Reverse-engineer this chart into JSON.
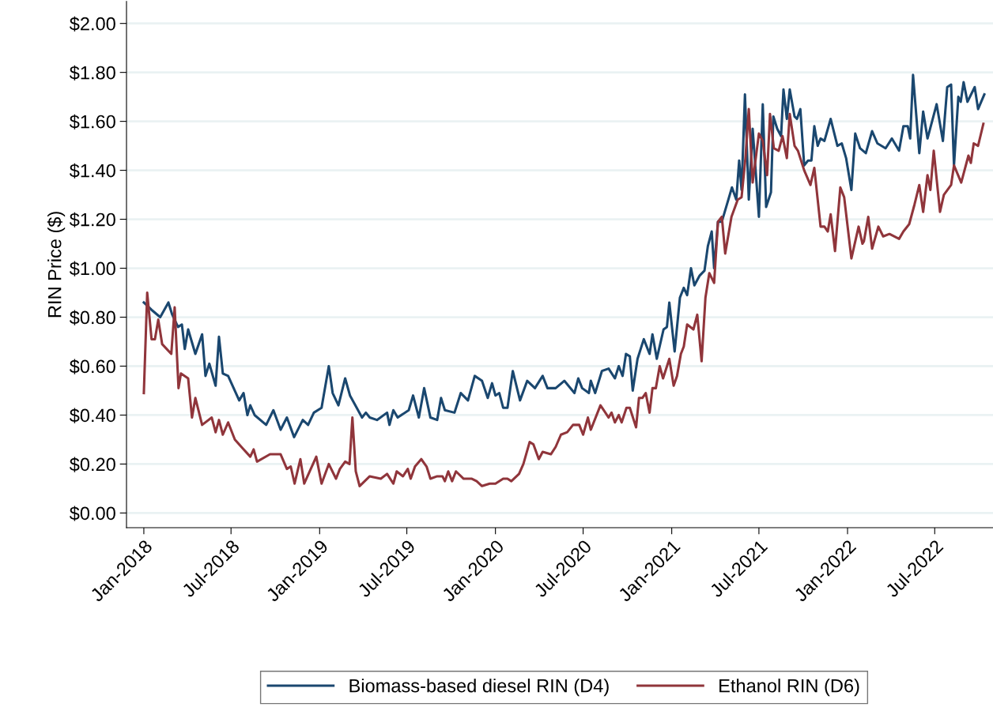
{
  "chart_data": {
    "type": "line",
    "ylabel": "RIN Price ($)",
    "xlim": [
      "2017-11-26",
      "2022-10-30"
    ],
    "ylim": [
      -0.06,
      2.09
    ],
    "xticks": [
      {
        "value": "2018-01-01",
        "label": "Jan-2018"
      },
      {
        "value": "2018-07-01",
        "label": "Jul-2018"
      },
      {
        "value": "2019-01-01",
        "label": "Jan-2019"
      },
      {
        "value": "2019-07-01",
        "label": "Jul-2019"
      },
      {
        "value": "2020-01-01",
        "label": "Jan-2020"
      },
      {
        "value": "2020-07-01",
        "label": "Jul-2020"
      },
      {
        "value": "2021-01-01",
        "label": "Jan-2021"
      },
      {
        "value": "2021-07-01",
        "label": "Jul-2021"
      },
      {
        "value": "2022-01-01",
        "label": "Jan-2022"
      },
      {
        "value": "2022-07-01",
        "label": "Jul-2022"
      }
    ],
    "yticks": [
      {
        "value": 0,
        "label": "$0.00"
      },
      {
        "value": 0.2,
        "label": "$0.20"
      },
      {
        "value": 0.4,
        "label": "$0.40"
      },
      {
        "value": 0.6,
        "label": "$0.60"
      },
      {
        "value": 0.8,
        "label": "$0.80"
      },
      {
        "value": 1.0,
        "label": "$1.00"
      },
      {
        "value": 1.2,
        "label": "$1.20"
      },
      {
        "value": 1.4,
        "label": "$1.40"
      },
      {
        "value": 1.6,
        "label": "$1.60"
      },
      {
        "value": 1.8,
        "label": "$1.80"
      },
      {
        "value": 2.0,
        "label": "$2.00"
      }
    ],
    "grid": "y",
    "legend": "bottom",
    "marker": "none",
    "line_style": "solid",
    "series": [
      {
        "name": "Biomass-based diesel RIN (D4)",
        "color": "#1a476f",
        "x": [
          "2018-01-01",
          "2018-01-17",
          "2018-02-04",
          "2018-02-21",
          "2018-03-01",
          "2018-03-13",
          "2018-03-21",
          "2018-03-27",
          "2018-04-03",
          "2018-04-18",
          "2018-05-02",
          "2018-05-09",
          "2018-05-17",
          "2018-05-30",
          "2018-06-06",
          "2018-06-14",
          "2018-06-25",
          "2018-07-18",
          "2018-07-27",
          "2018-08-04",
          "2018-08-10",
          "2018-08-19",
          "2018-09-12",
          "2018-09-27",
          "2018-10-12",
          "2018-10-25",
          "2018-11-09",
          "2018-11-27",
          "2018-12-08",
          "2018-12-20",
          "2019-01-05",
          "2019-01-20",
          "2019-01-28",
          "2019-02-09",
          "2019-02-23",
          "2019-03-05",
          "2019-03-30",
          "2019-04-07",
          "2019-04-15",
          "2019-04-30",
          "2019-05-21",
          "2019-05-26",
          "2019-06-03",
          "2019-06-12",
          "2019-07-05",
          "2019-07-14",
          "2019-07-26",
          "2019-08-06",
          "2019-08-19",
          "2019-09-02",
          "2019-09-10",
          "2019-09-18",
          "2019-10-08",
          "2019-10-21",
          "2019-11-05",
          "2019-11-19",
          "2019-12-04",
          "2019-12-16",
          "2019-12-25",
          "2020-01-01",
          "2020-01-09",
          "2020-01-17",
          "2020-01-26",
          "2020-02-06",
          "2020-02-21",
          "2020-03-07",
          "2020-03-23",
          "2020-04-08",
          "2020-04-18",
          "2020-05-05",
          "2020-05-23",
          "2020-06-13",
          "2020-06-21",
          "2020-06-29",
          "2020-07-13",
          "2020-07-17",
          "2020-07-26",
          "2020-08-09",
          "2020-08-23",
          "2020-09-05",
          "2020-09-13",
          "2020-09-21",
          "2020-09-28",
          "2020-10-06",
          "2020-10-12",
          "2020-10-22",
          "2020-11-04",
          "2020-11-16",
          "2020-11-22",
          "2020-12-01",
          "2020-12-15",
          "2020-12-22",
          "2020-12-27",
          "2021-01-07",
          "2021-01-18",
          "2021-01-26",
          "2021-02-02",
          "2021-02-10",
          "2021-02-17",
          "2021-02-28",
          "2021-03-10",
          "2021-03-17",
          "2021-03-25",
          "2021-03-30",
          "2021-04-07",
          "2021-04-15",
          "2021-04-27",
          "2021-05-06",
          "2021-05-15",
          "2021-05-21",
          "2021-05-26",
          "2021-06-02",
          "2021-06-10",
          "2021-06-18",
          "2021-07-01",
          "2021-07-09",
          "2021-07-16",
          "2021-07-26",
          "2021-07-31",
          "2021-08-08",
          "2021-08-16",
          "2021-08-21",
          "2021-08-28",
          "2021-09-03",
          "2021-09-13",
          "2021-09-18",
          "2021-09-25",
          "2021-10-03",
          "2021-10-11",
          "2021-10-18",
          "2021-10-24",
          "2021-10-31",
          "2021-11-06",
          "2021-11-14",
          "2021-11-27",
          "2021-12-11",
          "2021-12-20",
          "2021-12-29",
          "2022-01-09",
          "2022-01-17",
          "2022-01-27",
          "2022-02-08",
          "2022-02-21",
          "2022-03-04",
          "2022-03-21",
          "2022-04-03",
          "2022-04-18",
          "2022-04-27",
          "2022-05-06",
          "2022-05-11",
          "2022-05-17",
          "2022-05-30",
          "2022-06-07",
          "2022-06-16",
          "2022-07-05",
          "2022-07-18",
          "2022-07-27",
          "2022-08-04",
          "2022-08-10",
          "2022-08-19",
          "2022-08-24",
          "2022-08-30",
          "2022-09-07",
          "2022-09-22",
          "2022-09-29",
          "2022-10-12"
        ],
        "values": [
          0.86,
          0.83,
          0.8,
          0.86,
          0.81,
          0.76,
          0.77,
          0.67,
          0.75,
          0.65,
          0.73,
          0.56,
          0.61,
          0.52,
          0.72,
          0.57,
          0.56,
          0.46,
          0.49,
          0.4,
          0.44,
          0.4,
          0.36,
          0.42,
          0.34,
          0.39,
          0.31,
          0.38,
          0.36,
          0.41,
          0.43,
          0.6,
          0.49,
          0.44,
          0.55,
          0.48,
          0.39,
          0.41,
          0.39,
          0.38,
          0.41,
          0.36,
          0.42,
          0.39,
          0.42,
          0.48,
          0.39,
          0.51,
          0.39,
          0.38,
          0.47,
          0.42,
          0.41,
          0.49,
          0.46,
          0.56,
          0.54,
          0.47,
          0.53,
          0.48,
          0.49,
          0.43,
          0.43,
          0.58,
          0.46,
          0.54,
          0.51,
          0.56,
          0.51,
          0.51,
          0.54,
          0.49,
          0.55,
          0.51,
          0.49,
          0.54,
          0.49,
          0.58,
          0.59,
          0.55,
          0.6,
          0.56,
          0.65,
          0.64,
          0.5,
          0.63,
          0.71,
          0.65,
          0.73,
          0.63,
          0.75,
          0.76,
          0.86,
          0.66,
          0.88,
          0.92,
          0.89,
          1.0,
          0.93,
          0.97,
          0.99,
          1.09,
          1.15,
          1.0,
          1.19,
          1.19,
          1.27,
          1.33,
          1.28,
          1.44,
          1.32,
          1.71,
          1.28,
          1.57,
          1.21,
          1.67,
          1.25,
          1.31,
          1.62,
          1.57,
          1.54,
          1.73,
          1.61,
          1.73,
          1.62,
          1.61,
          1.65,
          1.42,
          1.44,
          1.44,
          1.58,
          1.5,
          1.53,
          1.52,
          1.61,
          1.5,
          1.51,
          1.45,
          1.32,
          1.55,
          1.49,
          1.47,
          1.56,
          1.51,
          1.49,
          1.53,
          1.48,
          1.58,
          1.58,
          1.53,
          1.79,
          1.47,
          1.64,
          1.53,
          1.67,
          1.52,
          1.74,
          1.75,
          1.42,
          1.7,
          1.68,
          1.76,
          1.68,
          1.74,
          1.65,
          1.71
        ]
      },
      {
        "name": "Ethanol RIN (D6)",
        "color": "#90353b",
        "x": [
          "2018-01-01",
          "2018-01-08",
          "2018-01-17",
          "2018-01-24",
          "2018-01-31",
          "2018-02-08",
          "2018-02-27",
          "2018-03-06",
          "2018-03-14",
          "2018-03-19",
          "2018-04-03",
          "2018-04-11",
          "2018-04-18",
          "2018-05-02",
          "2018-05-22",
          "2018-05-30",
          "2018-06-06",
          "2018-06-14",
          "2018-06-25",
          "2018-07-09",
          "2018-07-27",
          "2018-08-10",
          "2018-08-17",
          "2018-08-24",
          "2018-09-20",
          "2018-10-12",
          "2018-10-25",
          "2018-11-02",
          "2018-11-10",
          "2018-11-22",
          "2018-11-30",
          "2018-12-25",
          "2019-01-05",
          "2019-01-20",
          "2019-02-04",
          "2019-02-12",
          "2019-02-23",
          "2019-03-04",
          "2019-03-10",
          "2019-03-17",
          "2019-03-25",
          "2019-04-15",
          "2019-05-08",
          "2019-05-21",
          "2019-06-03",
          "2019-06-10",
          "2019-06-23",
          "2019-07-03",
          "2019-07-09",
          "2019-07-18",
          "2019-07-31",
          "2019-08-11",
          "2019-08-19",
          "2019-09-02",
          "2019-09-13",
          "2019-09-18",
          "2019-09-25",
          "2019-10-03",
          "2019-10-11",
          "2019-10-27",
          "2019-11-13",
          "2019-11-23",
          "2019-12-04",
          "2019-12-20",
          "2020-01-01",
          "2020-01-17",
          "2020-01-26",
          "2020-02-03",
          "2020-02-19",
          "2020-02-28",
          "2020-03-12",
          "2020-03-20",
          "2020-03-31",
          "2020-04-08",
          "2020-04-25",
          "2020-05-05",
          "2020-05-16",
          "2020-05-29",
          "2020-06-10",
          "2020-06-23",
          "2020-07-01",
          "2020-07-11",
          "2020-07-17",
          "2020-08-06",
          "2020-08-23",
          "2020-08-29",
          "2020-09-05",
          "2020-09-13",
          "2020-09-19",
          "2020-09-29",
          "2020-10-06",
          "2020-10-19",
          "2020-10-25",
          "2020-11-01",
          "2020-11-08",
          "2020-11-16",
          "2020-11-22",
          "2020-11-29",
          "2020-12-07",
          "2020-12-14",
          "2020-12-27",
          "2021-01-05",
          "2021-01-12",
          "2021-01-20",
          "2021-01-26",
          "2021-02-02",
          "2021-02-15",
          "2021-02-23",
          "2021-03-04",
          "2021-03-12",
          "2021-03-20",
          "2021-03-30",
          "2021-04-07",
          "2021-04-15",
          "2021-04-22",
          "2021-05-05",
          "2021-05-18",
          "2021-05-26",
          "2021-06-03",
          "2021-06-10",
          "2021-06-18",
          "2021-07-01",
          "2021-07-09",
          "2021-07-18",
          "2021-07-24",
          "2021-08-01",
          "2021-08-11",
          "2021-08-19",
          "2021-08-28",
          "2021-09-03",
          "2021-09-13",
          "2021-09-20",
          "2021-10-03",
          "2021-10-16",
          "2021-10-24",
          "2021-11-06",
          "2021-11-14",
          "2021-11-21",
          "2021-11-27",
          "2021-12-06",
          "2021-12-17",
          "2021-12-25",
          "2022-01-09",
          "2022-01-24",
          "2022-02-01",
          "2022-02-04",
          "2022-02-13",
          "2022-02-21",
          "2022-03-06",
          "2022-03-16",
          "2022-03-29",
          "2022-04-18",
          "2022-04-27",
          "2022-05-09",
          "2022-05-20",
          "2022-05-30",
          "2022-06-07",
          "2022-06-16",
          "2022-06-22",
          "2022-06-29",
          "2022-07-12",
          "2022-07-20",
          "2022-08-04",
          "2022-08-10",
          "2022-08-25",
          "2022-09-09",
          "2022-09-14",
          "2022-09-20",
          "2022-09-29",
          "2022-10-10"
        ],
        "values": [
          0.49,
          0.9,
          0.71,
          0.71,
          0.79,
          0.69,
          0.65,
          0.84,
          0.51,
          0.57,
          0.55,
          0.39,
          0.47,
          0.36,
          0.39,
          0.33,
          0.38,
          0.32,
          0.37,
          0.3,
          0.26,
          0.23,
          0.26,
          0.21,
          0.24,
          0.24,
          0.18,
          0.19,
          0.12,
          0.22,
          0.12,
          0.23,
          0.12,
          0.2,
          0.14,
          0.18,
          0.21,
          0.2,
          0.39,
          0.17,
          0.11,
          0.15,
          0.14,
          0.16,
          0.12,
          0.17,
          0.15,
          0.18,
          0.14,
          0.19,
          0.22,
          0.19,
          0.14,
          0.15,
          0.15,
          0.13,
          0.17,
          0.13,
          0.17,
          0.14,
          0.14,
          0.13,
          0.11,
          0.12,
          0.12,
          0.14,
          0.14,
          0.13,
          0.16,
          0.2,
          0.29,
          0.28,
          0.22,
          0.25,
          0.24,
          0.27,
          0.32,
          0.33,
          0.36,
          0.36,
          0.32,
          0.39,
          0.34,
          0.44,
          0.39,
          0.41,
          0.37,
          0.4,
          0.37,
          0.43,
          0.43,
          0.35,
          0.47,
          0.47,
          0.49,
          0.41,
          0.51,
          0.51,
          0.6,
          0.55,
          0.63,
          0.52,
          0.56,
          0.65,
          0.68,
          0.77,
          0.75,
          0.81,
          0.62,
          0.88,
          0.98,
          0.94,
          1.19,
          1.21,
          1.06,
          1.21,
          1.28,
          1.29,
          1.45,
          1.65,
          1.35,
          1.55,
          1.52,
          1.38,
          1.63,
          1.49,
          1.48,
          1.54,
          1.45,
          1.63,
          1.5,
          1.48,
          1.4,
          1.34,
          1.41,
          1.17,
          1.17,
          1.15,
          1.22,
          1.07,
          1.33,
          1.29,
          1.04,
          1.17,
          1.1,
          1.11,
          1.21,
          1.08,
          1.17,
          1.13,
          1.14,
          1.12,
          1.15,
          1.18,
          1.26,
          1.34,
          1.23,
          1.38,
          1.32,
          1.48,
          1.23,
          1.3,
          1.34,
          1.42,
          1.35,
          1.46,
          1.43,
          1.51,
          1.5,
          1.59
        ]
      }
    ]
  }
}
